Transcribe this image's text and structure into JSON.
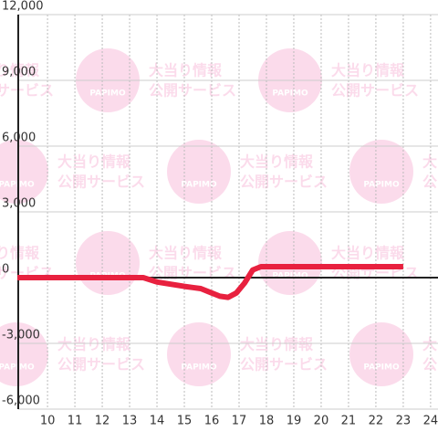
{
  "chart_data": {
    "type": "line",
    "x": [
      8.9,
      13.5,
      14,
      14.5,
      15,
      15.3,
      15.6,
      16,
      16.3,
      16.6,
      16.9,
      17.2,
      17.5,
      17.8,
      18.5,
      23
    ],
    "series": [
      {
        "color": "#e8213f",
        "values": [
          0,
          0,
          -200,
          -300,
          -400,
          -450,
          -500,
          -700,
          -850,
          -900,
          -700,
          -250,
          350,
          500,
          500,
          500
        ]
      }
    ],
    "xlim": [
      8.93,
      24.27
    ],
    "xticks": [
      10,
      11,
      12,
      13,
      14,
      15,
      16,
      17,
      18,
      19,
      20,
      21,
      22,
      23,
      24
    ],
    "ylim": [
      -6000,
      12000
    ],
    "yticks": [
      {
        "value": -6000,
        "label": "-6,000"
      },
      {
        "value": -3000,
        "label": "-3,000"
      },
      0,
      {
        "value": 3000,
        "label": "3,000"
      },
      {
        "value": 6000,
        "label": "6,000"
      },
      {
        "value": 9000,
        "label": "9,000"
      },
      {
        "value": 12000,
        "label": "12,000"
      }
    ],
    "grid": true
  },
  "watermark": {
    "line1": "大当り情報",
    "line2": "公開サービス",
    "logo": "PAPIMO"
  }
}
